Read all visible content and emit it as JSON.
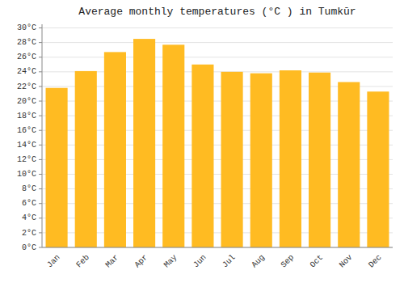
{
  "chart_data": {
    "type": "bar",
    "title": "Average monthly temperatures (°C ) in Tumkūr",
    "categories": [
      "Jan",
      "Feb",
      "Mar",
      "Apr",
      "May",
      "Jun",
      "Jul",
      "Aug",
      "Sep",
      "Oct",
      "Nov",
      "Dec"
    ],
    "values": [
      21.8,
      24.1,
      26.7,
      28.5,
      27.7,
      25.0,
      24.0,
      23.8,
      24.2,
      23.9,
      22.6,
      21.3
    ],
    "color": "#FFBB22",
    "ylim": [
      0,
      30.5
    ],
    "yticks": [
      {
        "value": 0,
        "label": "0°C"
      },
      {
        "value": 2,
        "label": "2°C"
      },
      {
        "value": 4,
        "label": "4°C"
      },
      {
        "value": 6,
        "label": "6°C"
      },
      {
        "value": 8,
        "label": "8°C"
      },
      {
        "value": 10,
        "label": "10°C"
      },
      {
        "value": 12,
        "label": "12°C"
      },
      {
        "value": 14,
        "label": "14°C"
      },
      {
        "value": 16,
        "label": "16°C"
      },
      {
        "value": 18,
        "label": "18°C"
      },
      {
        "value": 20,
        "label": "20°C"
      },
      {
        "value": 22,
        "label": "22°C"
      },
      {
        "value": 24,
        "label": "24°C"
      },
      {
        "value": 26,
        "label": "26°C"
      },
      {
        "value": 28,
        "label": "28°C"
      },
      {
        "value": 30,
        "label": "30°C"
      }
    ],
    "grid": true
  }
}
